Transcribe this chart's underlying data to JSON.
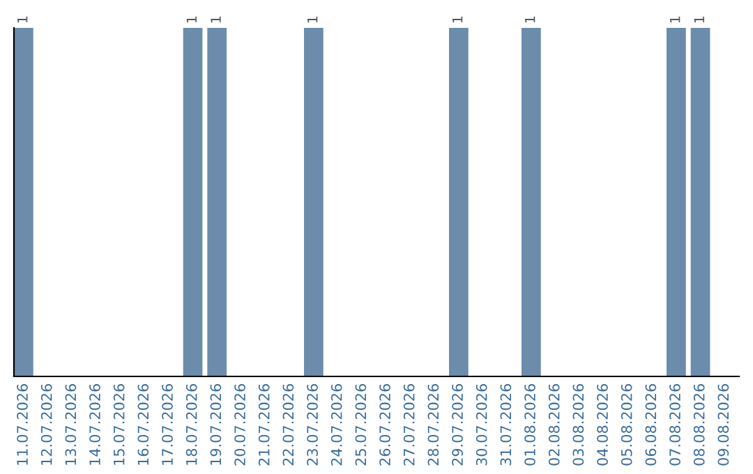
{
  "chart_data": {
    "type": "bar",
    "categories": [
      "11.07.2026",
      "12.07.2026",
      "13.07.2026",
      "14.07.2026",
      "15.07.2026",
      "16.07.2026",
      "17.07.2026",
      "18.07.2026",
      "19.07.2026",
      "20.07.2026",
      "21.07.2026",
      "22.07.2026",
      "23.07.2026",
      "24.07.2026",
      "25.07.2026",
      "26.07.2026",
      "27.07.2026",
      "28.07.2026",
      "29.07.2026",
      "30.07.2026",
      "31.07.2026",
      "01.08.2026",
      "02.08.2026",
      "03.08.2026",
      "04.08.2026",
      "05.08.2026",
      "06.08.2026",
      "07.08.2026",
      "08.08.2026",
      "09.08.2026"
    ],
    "values": [
      1,
      0,
      0,
      0,
      0,
      0,
      0,
      1,
      1,
      0,
      0,
      0,
      1,
      0,
      0,
      0,
      0,
      0,
      1,
      0,
      0,
      1,
      0,
      0,
      0,
      0,
      0,
      1,
      1,
      0
    ],
    "value_labels": [
      "1",
      null,
      null,
      null,
      null,
      null,
      null,
      "1",
      "1",
      null,
      null,
      null,
      "1",
      null,
      null,
      null,
      null,
      null,
      "1",
      null,
      null,
      "1",
      null,
      null,
      null,
      null,
      null,
      "1",
      "1",
      null
    ],
    "color": "#6b8cab",
    "ylim": [
      0,
      1
    ],
    "tick_labels": "x",
    "grid": false,
    "legend": false
  }
}
